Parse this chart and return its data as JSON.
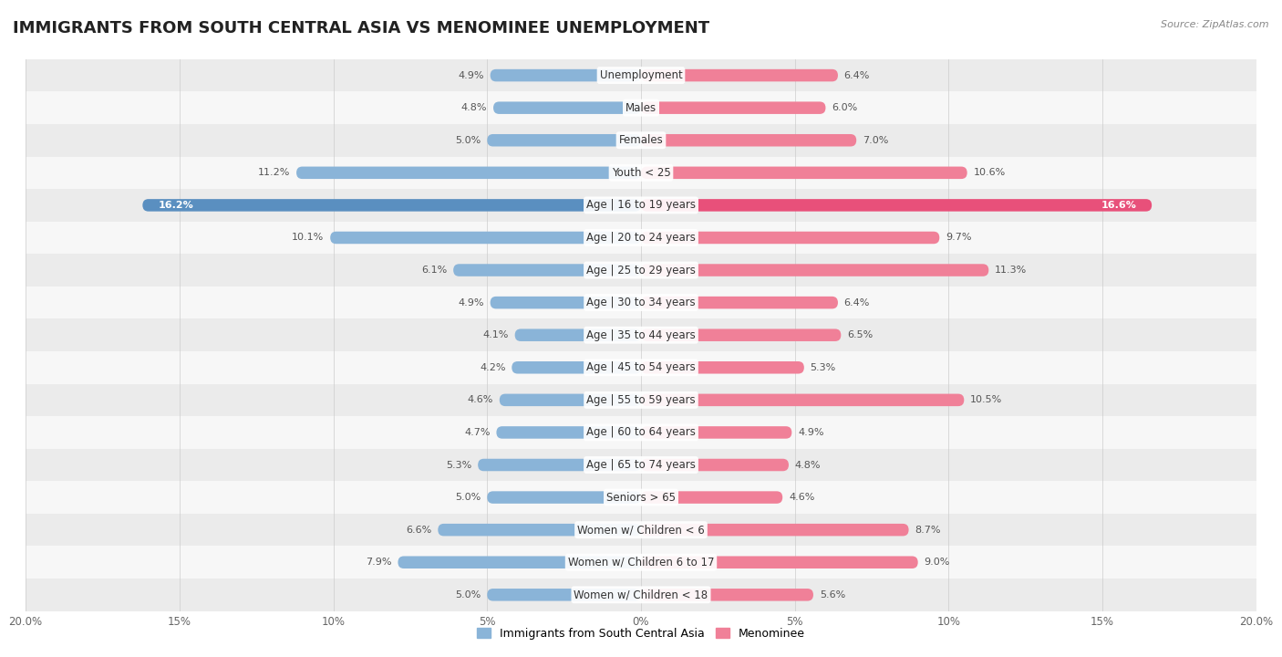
{
  "title": "IMMIGRANTS FROM SOUTH CENTRAL ASIA VS MENOMINEE UNEMPLOYMENT",
  "source": "Source: ZipAtlas.com",
  "categories": [
    "Unemployment",
    "Males",
    "Females",
    "Youth < 25",
    "Age | 16 to 19 years",
    "Age | 20 to 24 years",
    "Age | 25 to 29 years",
    "Age | 30 to 34 years",
    "Age | 35 to 44 years",
    "Age | 45 to 54 years",
    "Age | 55 to 59 years",
    "Age | 60 to 64 years",
    "Age | 65 to 74 years",
    "Seniors > 65",
    "Women w/ Children < 6",
    "Women w/ Children 6 to 17",
    "Women w/ Children < 18"
  ],
  "left_values": [
    4.9,
    4.8,
    5.0,
    11.2,
    16.2,
    10.1,
    6.1,
    4.9,
    4.1,
    4.2,
    4.6,
    4.7,
    5.3,
    5.0,
    6.6,
    7.9,
    5.0
  ],
  "right_values": [
    6.4,
    6.0,
    7.0,
    10.6,
    16.6,
    9.7,
    11.3,
    6.4,
    6.5,
    5.3,
    10.5,
    4.9,
    4.8,
    4.6,
    8.7,
    9.0,
    5.6
  ],
  "left_color": "#8ab4d8",
  "right_color": "#f08098",
  "left_highlight_color": "#5a8fc0",
  "right_highlight_color": "#e8507a",
  "highlight_row": 4,
  "xlim": 20.0,
  "row_bg_color_odd": "#ebebeb",
  "row_bg_color_even": "#f7f7f7",
  "legend_left": "Immigrants from South Central Asia",
  "legend_right": "Menominee",
  "title_fontsize": 13,
  "label_fontsize": 8.5,
  "value_fontsize": 8.0,
  "axis_tick_fontsize": 8.5
}
